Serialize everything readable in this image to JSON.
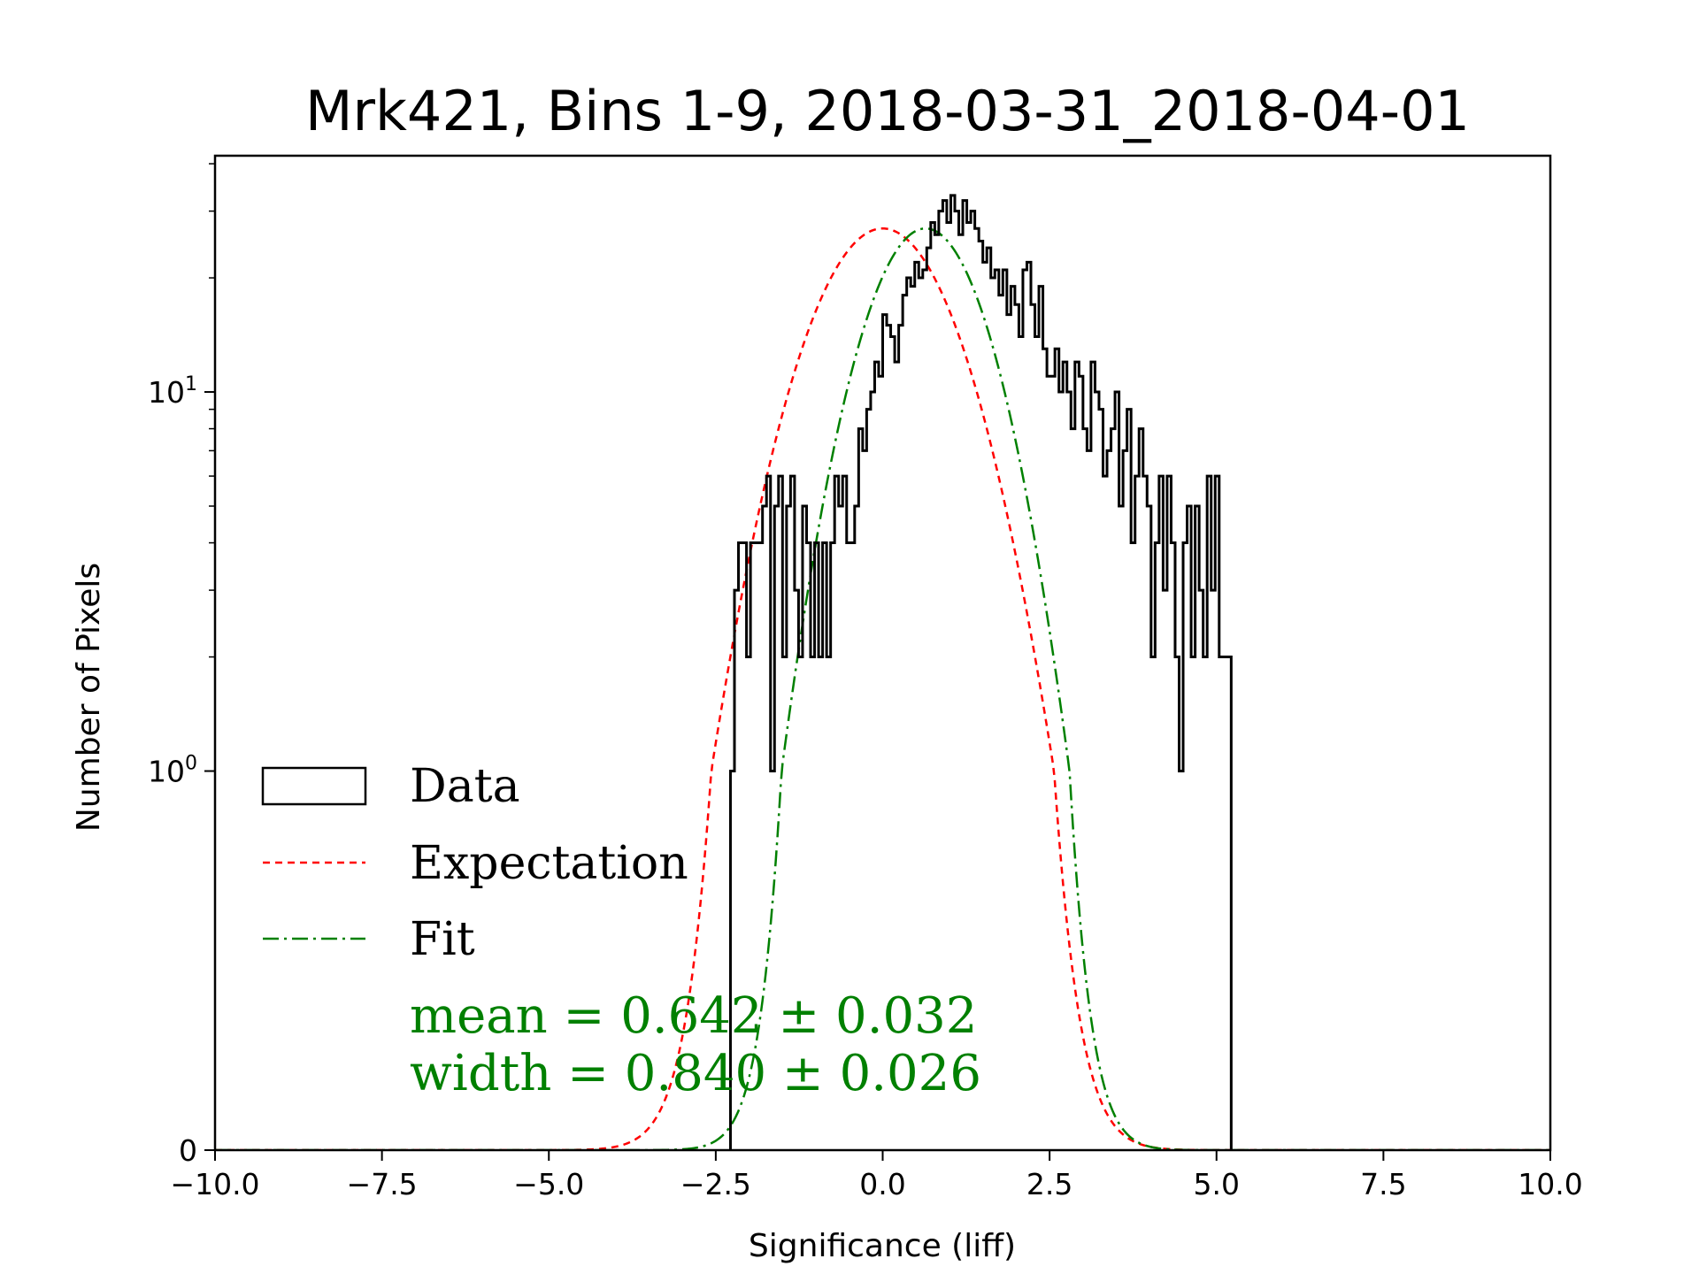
{
  "chart_data": {
    "type": "histogram",
    "title": "Mrk421, Bins 1-9, 2018-03-31_2018-04-01",
    "xlabel": "Significance (liff)",
    "ylabel": "Number of Pixels",
    "xlim": [
      -10.0,
      10.0
    ],
    "yscale": "symlog",
    "symlog_linthresh": 1,
    "ylim": [
      0,
      42
    ],
    "xticks": [
      {
        "value": -10.0,
        "label": "−10.0"
      },
      {
        "value": -7.5,
        "label": "−7.5"
      },
      {
        "value": -5.0,
        "label": "−5.0"
      },
      {
        "value": -2.5,
        "label": "−2.5"
      },
      {
        "value": 0.0,
        "label": "0.0"
      },
      {
        "value": 2.5,
        "label": "2.5"
      },
      {
        "value": 5.0,
        "label": "5.0"
      },
      {
        "value": 7.5,
        "label": "7.5"
      },
      {
        "value": 10.0,
        "label": "10.0"
      }
    ],
    "yticks": [
      {
        "value": 0,
        "label": "0",
        "base": "",
        "exp": ""
      },
      {
        "value": 1,
        "label": "10^0",
        "base": "10",
        "exp": "0"
      },
      {
        "value": 10,
        "label": "10^1",
        "base": "10",
        "exp": "1"
      }
    ],
    "series": [
      {
        "name": "Data",
        "kind": "step-histogram",
        "color": "#000000",
        "bin_edges_start": -2.28,
        "bin_width": 0.06,
        "counts": [
          1,
          3,
          4,
          4,
          2,
          4,
          4,
          4,
          5,
          6,
          1,
          5,
          6,
          2,
          5,
          6,
          3,
          2,
          5,
          4,
          2,
          4,
          2,
          4,
          2,
          4,
          6,
          5,
          6,
          4,
          4,
          5,
          8,
          7,
          9,
          10,
          12,
          11,
          16,
          15,
          14,
          12,
          15,
          18,
          20,
          19,
          22,
          20,
          21,
          24,
          28,
          26,
          30,
          32,
          28,
          33,
          30,
          26,
          32,
          28,
          30,
          27,
          25,
          22,
          24,
          20,
          21,
          18,
          21,
          16,
          19,
          17,
          14,
          21,
          22,
          17,
          14,
          19,
          13,
          11,
          11,
          13,
          10,
          12,
          10,
          8,
          12,
          11,
          8,
          7,
          12,
          10,
          9,
          6,
          7,
          8,
          10,
          5,
          7,
          9,
          4,
          6,
          8,
          6,
          5,
          2,
          4,
          6,
          3,
          6,
          4,
          2,
          1,
          4,
          5,
          2,
          5,
          3,
          2,
          6,
          3,
          6,
          2,
          2,
          2
        ]
      },
      {
        "name": "Expectation",
        "kind": "gaussian",
        "color": "#ff0000",
        "mean": 0.0,
        "sigma": 1.0,
        "amplitude": 27.0
      },
      {
        "name": "Fit",
        "kind": "gaussian",
        "color": "#008000",
        "mean": 0.642,
        "sigma": 0.84,
        "amplitude": 27.0
      }
    ],
    "legend": {
      "placement": "lower-left",
      "entries": [
        {
          "label": "Data",
          "style": "box"
        },
        {
          "label": "Expectation",
          "style": "dashed"
        },
        {
          "label": "Fit",
          "style": "dashdot"
        }
      ]
    },
    "annotations": {
      "mean_text": "mean = 0.642 ± 0.032",
      "width_text": "width = 0.840 ± 0.026",
      "color": "#008000"
    },
    "grid": false
  }
}
